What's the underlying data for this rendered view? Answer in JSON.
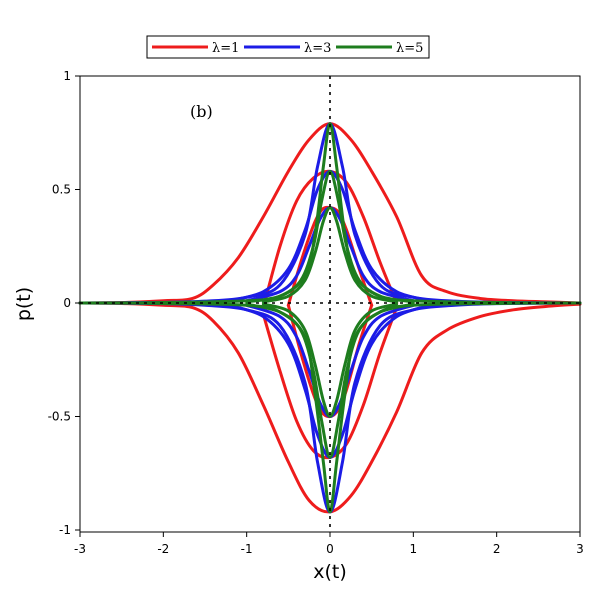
{
  "chart_data": {
    "type": "line",
    "title": "",
    "xlabel": "x(t)",
    "ylabel": "p(t)",
    "xlim": [
      -3,
      3
    ],
    "ylim": [
      -1,
      1
    ],
    "x_ticks": [
      -3,
      -2,
      -1,
      0,
      1,
      2,
      3
    ],
    "x_tick_labels": [
      "-3",
      "-2",
      "-1",
      "0",
      "1",
      "2",
      "3"
    ],
    "y_ticks": [
      -1,
      -0.5,
      0,
      0.5,
      1
    ],
    "y_tick_labels": [
      "-1",
      "-0.5",
      "0",
      "0.5",
      "1"
    ],
    "grid": false,
    "reference_lines": {
      "horizontal_y": 0,
      "vertical_x": 0,
      "style": "dotted"
    },
    "annotation": "(b)",
    "legend": {
      "position": "top-outside"
    },
    "series": [
      {
        "name": "λ=1",
        "color": "#ee1c1c",
        "curves": [
          {
            "x": [
              -3,
              -2.5,
              -2,
              -1.65,
              -1.4,
              -1.1,
              -0.8,
              -0.5,
              -0.25,
              0,
              0.25,
              0.5,
              0.8,
              1.1,
              1.4,
              1.8,
              2.2,
              2.6,
              3
            ],
            "y": [
              0,
              0.002,
              0.01,
              0.02,
              0.08,
              0.2,
              0.38,
              0.58,
              0.72,
              0.79,
              0.72,
              0.58,
              0.38,
              0.12,
              0.05,
              0.02,
              0.01,
              0.005,
              0.0
            ]
          },
          {
            "x": [
              -3,
              -2.5,
              -2,
              -1.65,
              -1.4,
              -1.1,
              -0.8,
              -0.5,
              -0.25,
              0,
              0.25,
              0.5,
              0.8,
              1.1,
              1.4,
              1.8,
              2.2,
              2.6,
              3
            ],
            "y": [
              0,
              -0.002,
              -0.01,
              -0.02,
              -0.08,
              -0.22,
              -0.45,
              -0.7,
              -0.87,
              -0.92,
              -0.85,
              -0.7,
              -0.48,
              -0.22,
              -0.12,
              -0.06,
              -0.03,
              -0.015,
              -0.005
            ]
          },
          {
            "x": [
              -0.8,
              -0.6,
              -0.4,
              -0.2,
              0,
              0.2,
              0.4,
              0.6,
              0.8
            ],
            "y": [
              -0.02,
              0.25,
              0.45,
              0.55,
              0.58,
              0.53,
              0.38,
              0.18,
              0.0
            ]
          },
          {
            "x": [
              -0.8,
              -0.6,
              -0.4,
              -0.2,
              0,
              0.2,
              0.4,
              0.6,
              0.8
            ],
            "y": [
              -0.05,
              -0.3,
              -0.52,
              -0.65,
              -0.68,
              -0.62,
              -0.45,
              -0.22,
              -0.02
            ]
          },
          {
            "x": [
              -0.5,
              -0.35,
              -0.2,
              -0.1,
              0,
              0.1,
              0.2,
              0.35,
              0.5
            ],
            "y": [
              -0.01,
              0.18,
              0.34,
              0.41,
              0.42,
              0.4,
              0.32,
              0.15,
              -0.01
            ]
          },
          {
            "x": [
              -0.5,
              -0.35,
              -0.2,
              -0.1,
              0,
              0.1,
              0.2,
              0.35,
              0.5
            ],
            "y": [
              -0.01,
              -0.22,
              -0.4,
              -0.48,
              -0.5,
              -0.47,
              -0.38,
              -0.18,
              -0.01
            ]
          }
        ]
      },
      {
        "name": "λ=3",
        "color": "#1c1ce6",
        "curves": [
          {
            "x": [
              -3,
              -2,
              -1.5,
              -1,
              -0.6,
              -0.3,
              -0.15,
              0,
              0.15,
              0.3,
              0.6,
              1,
              1.5,
              2,
              3
            ],
            "y": [
              0,
              0.003,
              0.008,
              0.025,
              0.08,
              0.3,
              0.6,
              0.79,
              0.6,
              0.3,
              0.08,
              0.025,
              0.008,
              0.003,
              0
            ]
          },
          {
            "x": [
              -3,
              -2,
              -1.5,
              -1,
              -0.6,
              -0.3,
              -0.15,
              0,
              0.15,
              0.3,
              0.6,
              1,
              1.5,
              2,
              3
            ],
            "y": [
              0,
              -0.003,
              -0.01,
              -0.03,
              -0.1,
              -0.35,
              -0.7,
              -0.92,
              -0.7,
              -0.35,
              -0.1,
              -0.03,
              -0.01,
              -0.003,
              0
            ]
          },
          {
            "x": [
              -1.2,
              -0.8,
              -0.5,
              -0.3,
              -0.15,
              0,
              0.15,
              0.3,
              0.5,
              0.8,
              1.2
            ],
            "y": [
              0.01,
              0.05,
              0.15,
              0.32,
              0.5,
              0.58,
              0.5,
              0.32,
              0.15,
              0.05,
              0.01
            ]
          },
          {
            "x": [
              -1.2,
              -0.8,
              -0.5,
              -0.3,
              -0.15,
              0,
              0.15,
              0.3,
              0.5,
              0.8,
              1.2
            ],
            "y": [
              -0.01,
              -0.06,
              -0.18,
              -0.38,
              -0.58,
              -0.68,
              -0.58,
              -0.38,
              -0.18,
              -0.06,
              -0.01
            ]
          },
          {
            "x": [
              -1,
              -0.6,
              -0.4,
              -0.25,
              -0.12,
              0,
              0.12,
              0.25,
              0.4,
              0.6,
              1
            ],
            "y": [
              0.01,
              0.05,
              0.12,
              0.25,
              0.37,
              0.42,
              0.37,
              0.25,
              0.12,
              0.05,
              0.01
            ]
          },
          {
            "x": [
              -1,
              -0.6,
              -0.4,
              -0.25,
              -0.12,
              0,
              0.12,
              0.25,
              0.4,
              0.6,
              1
            ],
            "y": [
              -0.01,
              -0.06,
              -0.15,
              -0.3,
              -0.44,
              -0.5,
              -0.44,
              -0.3,
              -0.15,
              -0.06,
              -0.01
            ]
          }
        ]
      },
      {
        "name": "λ=5",
        "color": "#1e7d1e",
        "curves": [
          {
            "x": [
              -3,
              -2,
              -1,
              -0.6,
              -0.3,
              -0.18,
              -0.08,
              0,
              0.08,
              0.18,
              0.3,
              0.6,
              1,
              2,
              3
            ],
            "y": [
              0,
              0.002,
              0.01,
              0.03,
              0.12,
              0.3,
              0.6,
              0.79,
              0.6,
              0.3,
              0.12,
              0.03,
              0.01,
              0.002,
              0
            ]
          },
          {
            "x": [
              -3,
              -2,
              -1,
              -0.6,
              -0.3,
              -0.18,
              -0.08,
              0,
              0.08,
              0.18,
              0.3,
              0.6,
              1,
              2,
              3
            ],
            "y": [
              0,
              -0.002,
              -0.01,
              -0.04,
              -0.15,
              -0.4,
              -0.7,
              -0.92,
              -0.7,
              -0.4,
              -0.15,
              -0.04,
              -0.01,
              -0.002,
              0
            ]
          },
          {
            "x": [
              -1,
              -0.6,
              -0.35,
              -0.2,
              -0.1,
              0,
              0.1,
              0.2,
              0.35,
              0.6,
              1
            ],
            "y": [
              0.005,
              0.03,
              0.1,
              0.25,
              0.45,
              0.58,
              0.45,
              0.25,
              0.1,
              0.03,
              0.005
            ]
          },
          {
            "x": [
              -1,
              -0.6,
              -0.35,
              -0.2,
              -0.1,
              0,
              0.1,
              0.2,
              0.35,
              0.6,
              1
            ],
            "y": [
              -0.005,
              -0.04,
              -0.12,
              -0.3,
              -0.52,
              -0.68,
              -0.52,
              -0.3,
              -0.12,
              -0.04,
              -0.005
            ]
          },
          {
            "x": [
              -0.8,
              -0.5,
              -0.3,
              -0.18,
              -0.08,
              0,
              0.08,
              0.18,
              0.3,
              0.5,
              0.8
            ],
            "y": [
              0.005,
              0.03,
              0.1,
              0.22,
              0.36,
              0.42,
              0.36,
              0.22,
              0.1,
              0.03,
              0.005
            ]
          },
          {
            "x": [
              -0.8,
              -0.5,
              -0.3,
              -0.18,
              -0.08,
              0,
              0.08,
              0.18,
              0.3,
              0.5,
              0.8
            ],
            "y": [
              -0.005,
              -0.035,
              -0.12,
              -0.27,
              -0.43,
              -0.5,
              -0.43,
              -0.27,
              -0.12,
              -0.035,
              -0.005
            ]
          }
        ]
      }
    ]
  }
}
